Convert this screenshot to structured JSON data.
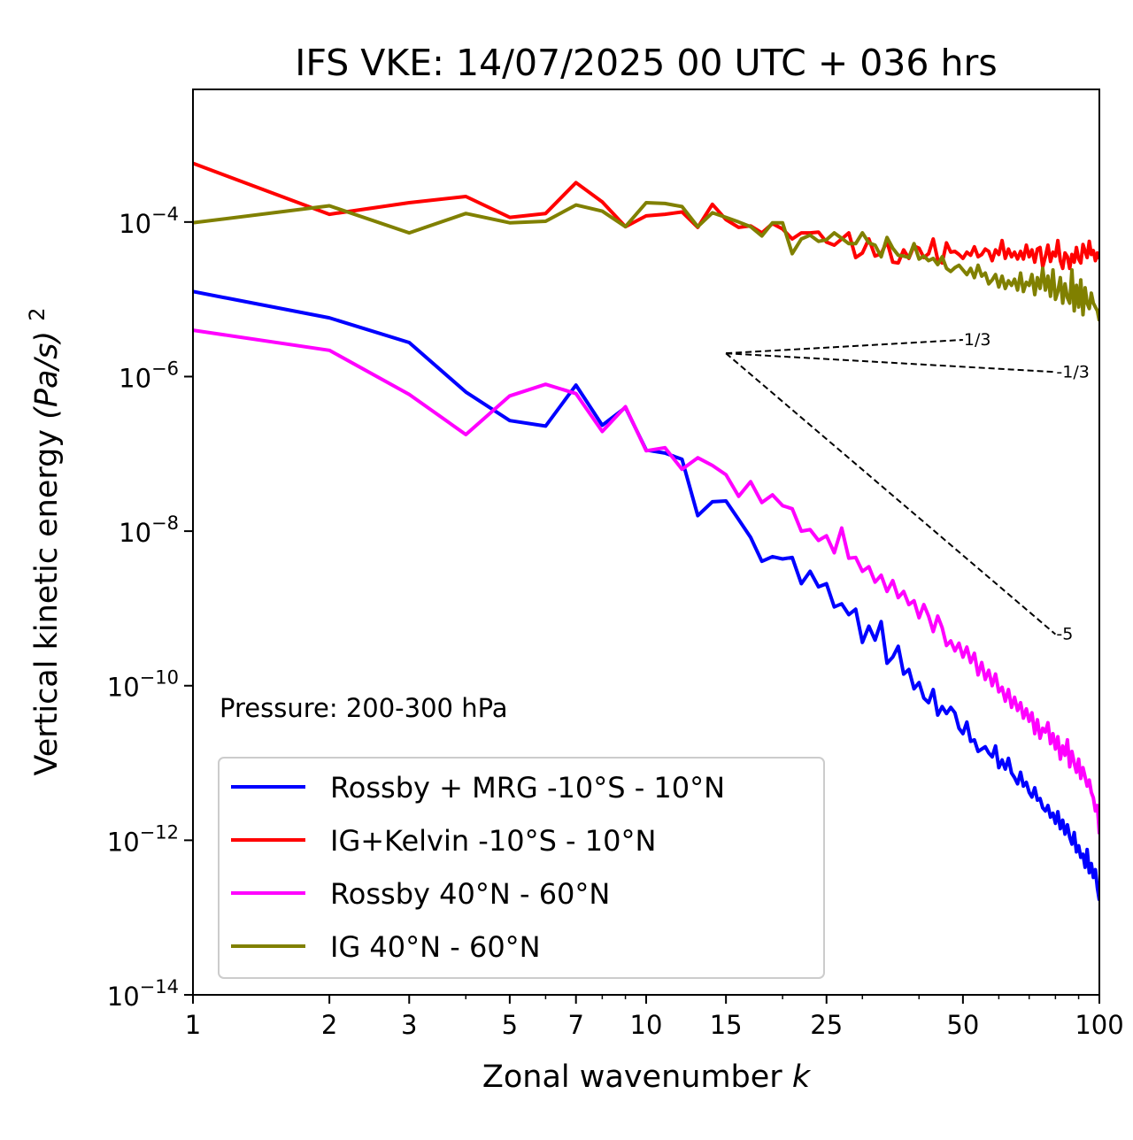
{
  "chart_data": {
    "type": "line",
    "title": "IFS VKE: 14/07/2025 00 UTC + 036 hrs",
    "xlabel": "Zonal wavenumber",
    "xlabel_var": "k",
    "ylabel": "Vertical kinetic energy",
    "ylabel_unit": "(Pa/s)",
    "ylabel_unit_power": "2",
    "xscale": "log",
    "yscale": "log",
    "xlim": [
      1,
      100
    ],
    "ylim": [
      1e-14,
      0.0052
    ],
    "grid": false,
    "x_ticks": [
      1,
      2,
      3,
      5,
      7,
      10,
      15,
      25,
      50,
      100
    ],
    "x_tick_labels": [
      "1",
      "2",
      "3",
      "5",
      "7",
      "10",
      "15",
      "25",
      "50",
      "100"
    ],
    "y_ticks": [
      1e-14,
      1e-12,
      1e-10,
      1e-08,
      1e-06,
      0.0001
    ],
    "y_tick_labels": [
      {
        "base": "10",
        "exp": "−14"
      },
      {
        "base": "10",
        "exp": "−12"
      },
      {
        "base": "10",
        "exp": "−10"
      },
      {
        "base": "10",
        "exp": "−8"
      },
      {
        "base": "10",
        "exp": "−6"
      },
      {
        "base": "10",
        "exp": "−4"
      }
    ],
    "annotation": "Pressure: 200-300 hPa",
    "legend_position": "lower-left",
    "reference_slopes": [
      {
        "label": "1/3",
        "slope": 0.3333,
        "k_start": 15,
        "k_end": 50,
        "y_start": 2e-06
      },
      {
        "label": "-1/3",
        "slope": -0.3333,
        "k_start": 15,
        "k_end": 80,
        "y_start": 2e-06
      },
      {
        "label": "-5",
        "slope": -5,
        "k_start": 15,
        "k_end": 80,
        "y_start": 2e-06
      }
    ],
    "x": [
      1,
      2,
      3,
      4,
      5,
      6,
      7,
      8,
      9,
      10,
      11,
      12,
      13,
      14,
      15,
      16,
      17,
      18,
      19,
      20,
      21,
      22,
      23,
      24,
      25,
      26,
      27,
      28,
      29,
      30,
      31,
      32,
      33,
      34,
      35,
      36,
      37,
      38,
      39,
      40,
      41,
      42,
      43,
      44,
      45,
      46,
      47,
      48,
      49,
      50,
      51,
      52,
      53,
      54,
      55,
      56,
      57,
      58,
      59,
      60,
      61,
      62,
      63,
      64,
      65,
      66,
      67,
      68,
      69,
      70,
      71,
      72,
      73,
      74,
      75,
      76,
      77,
      78,
      79,
      80,
      81,
      82,
      83,
      84,
      85,
      86,
      87,
      88,
      89,
      90,
      91,
      92,
      93,
      94,
      95,
      96,
      97,
      98,
      99,
      100
    ],
    "series": [
      {
        "name": "Rossby + MRG -10°S - 10°N",
        "color": "#0000ff",
        "log10_values": [
          -4.9,
          -5.24,
          -5.56,
          -6.2,
          -6.57,
          -6.64,
          -6.11,
          -6.63,
          -6.4,
          -6.95,
          -6.99,
          -7.07,
          -7.8,
          -7.62,
          -7.61,
          -7.85,
          -8.08,
          -8.39,
          -8.33,
          -8.36,
          -8.34,
          -8.68,
          -8.52,
          -8.72,
          -8.68,
          -8.98,
          -8.94,
          -9.08,
          -9.01,
          -9.44,
          -9.23,
          -9.41,
          -9.17,
          -9.71,
          -9.63,
          -9.49,
          -9.85,
          -9.79,
          -10.04,
          -9.96,
          -10.16,
          -10.22,
          -10.05,
          -10.38,
          -10.27,
          -10.36,
          -10.28,
          -10.35,
          -10.55,
          -10.62,
          -10.47,
          -10.72,
          -10.7,
          -10.85,
          -10.82,
          -10.79,
          -10.87,
          -10.92,
          -10.78,
          -11.06,
          -10.96,
          -11.08,
          -10.94,
          -11.13,
          -11.19,
          -11.27,
          -11.12,
          -11.3,
          -11.25,
          -11.38,
          -11.44,
          -11.32,
          -11.48,
          -11.46,
          -11.58,
          -11.62,
          -11.55,
          -11.7,
          -11.65,
          -11.78,
          -11.63,
          -11.85,
          -11.74,
          -11.92,
          -11.8,
          -11.96,
          -12.05,
          -11.9,
          -12.15,
          -12.07,
          -12.22,
          -12.18,
          -12.35,
          -12.12,
          -12.42,
          -12.3,
          -12.48,
          -12.38,
          -12.62,
          -12.78
        ]
      },
      {
        "name": "IG+Kelvin -10°S - 10°N",
        "color": "#ff0000",
        "log10_values": [
          -3.24,
          -3.9,
          -3.75,
          -3.67,
          -3.94,
          -3.89,
          -3.49,
          -3.74,
          -4.06,
          -3.92,
          -3.9,
          -3.87,
          -4.07,
          -3.77,
          -3.97,
          -4.07,
          -4.05,
          -4.14,
          -4.02,
          -4.09,
          -4.22,
          -4.14,
          -4.14,
          -4.13,
          -4.26,
          -4.3,
          -4.22,
          -4.14,
          -4.46,
          -4.4,
          -4.22,
          -4.44,
          -4.41,
          -4.25,
          -4.52,
          -4.53,
          -4.36,
          -4.47,
          -4.31,
          -4.34,
          -4.46,
          -4.41,
          -4.22,
          -4.49,
          -4.53,
          -4.27,
          -4.39,
          -4.38,
          -4.42,
          -4.47,
          -4.39,
          -4.43,
          -4.32,
          -4.45,
          -4.42,
          -4.35,
          -4.38,
          -4.5,
          -4.36,
          -4.42,
          -4.24,
          -4.47,
          -4.35,
          -4.45,
          -4.39,
          -4.48,
          -4.38,
          -4.48,
          -4.3,
          -4.45,
          -4.36,
          -4.52,
          -4.35,
          -4.33,
          -4.58,
          -4.45,
          -4.3,
          -4.51,
          -4.39,
          -4.44,
          -4.24,
          -4.5,
          -4.6,
          -4.4,
          -4.45,
          -4.6,
          -4.42,
          -4.52,
          -4.33,
          -4.48,
          -4.53,
          -4.29,
          -4.38,
          -4.46,
          -4.25,
          -4.42,
          -4.37,
          -4.5,
          -4.4,
          -4.48
        ]
      },
      {
        "name": "Rossby 40°N - 60°N",
        "color": "#ff00ff",
        "log10_values": [
          -5.4,
          -5.66,
          -6.23,
          -6.75,
          -6.25,
          -6.1,
          -6.22,
          -6.71,
          -6.39,
          -6.96,
          -6.92,
          -7.2,
          -7.05,
          -7.15,
          -7.27,
          -7.55,
          -7.36,
          -7.63,
          -7.53,
          -7.67,
          -7.71,
          -8.0,
          -7.98,
          -8.12,
          -8.06,
          -8.28,
          -7.96,
          -8.35,
          -8.34,
          -8.52,
          -8.46,
          -8.66,
          -8.57,
          -8.78,
          -8.64,
          -8.86,
          -8.78,
          -8.95,
          -8.9,
          -9.12,
          -8.95,
          -9.1,
          -9.3,
          -9.1,
          -9.25,
          -9.48,
          -9.42,
          -9.55,
          -9.45,
          -9.63,
          -9.5,
          -9.7,
          -9.58,
          -9.86,
          -9.7,
          -9.92,
          -9.8,
          -10.0,
          -9.85,
          -10.08,
          -10.02,
          -10.2,
          -10.05,
          -10.28,
          -10.15,
          -10.32,
          -10.22,
          -10.42,
          -10.3,
          -10.46,
          -10.35,
          -10.62,
          -10.44,
          -10.68,
          -10.55,
          -10.6,
          -10.48,
          -10.75,
          -10.62,
          -10.82,
          -10.66,
          -10.95,
          -10.78,
          -10.9,
          -10.7,
          -11.05,
          -10.85,
          -11.0,
          -11.12,
          -10.95,
          -11.2,
          -11.06,
          -11.18,
          -11.3,
          -11.22,
          -11.38,
          -11.45,
          -11.62,
          -11.55,
          -11.92
        ]
      },
      {
        "name": "IG 40°N - 60°N",
        "color": "#808000",
        "log10_values": [
          -4.01,
          -3.79,
          -4.14,
          -3.89,
          -4.01,
          -3.99,
          -3.78,
          -3.86,
          -4.06,
          -3.75,
          -3.76,
          -3.8,
          -4.06,
          -3.88,
          -3.94,
          -4.0,
          -4.06,
          -4.18,
          -4.01,
          -4.01,
          -4.41,
          -4.22,
          -4.17,
          -4.25,
          -4.23,
          -4.14,
          -4.21,
          -4.28,
          -4.28,
          -4.14,
          -4.27,
          -4.3,
          -4.45,
          -4.2,
          -4.34,
          -4.43,
          -4.44,
          -4.46,
          -4.28,
          -4.48,
          -4.44,
          -4.5,
          -4.47,
          -4.55,
          -4.45,
          -4.6,
          -4.64,
          -4.59,
          -4.56,
          -4.62,
          -4.68,
          -4.6,
          -4.72,
          -4.56,
          -4.7,
          -4.66,
          -4.8,
          -4.75,
          -4.68,
          -4.84,
          -4.7,
          -4.86,
          -4.76,
          -4.82,
          -4.74,
          -4.88,
          -4.66,
          -4.9,
          -4.78,
          -4.82,
          -4.68,
          -4.94,
          -4.72,
          -4.86,
          -4.6,
          -4.88,
          -4.7,
          -4.96,
          -4.62,
          -5.0,
          -4.9,
          -4.72,
          -5.05,
          -4.8,
          -4.98,
          -5.05,
          -4.62,
          -5.15,
          -4.82,
          -5.1,
          -4.75,
          -5.2,
          -4.85,
          -5.05,
          -5.12,
          -4.92,
          -5.05,
          -5.1,
          -5.15,
          -5.28
        ]
      }
    ]
  }
}
